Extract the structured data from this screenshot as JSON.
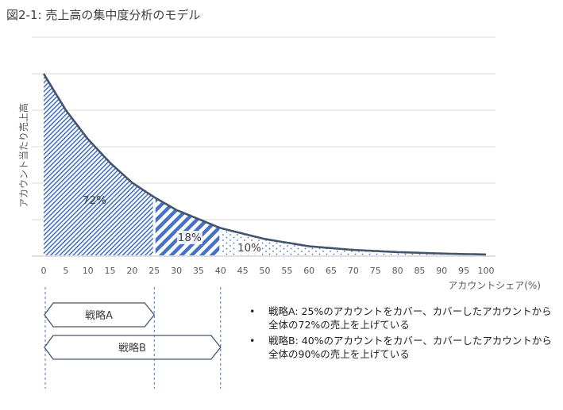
{
  "figure": {
    "title": "図2-1: 売上高の集中度分析のモデル"
  },
  "chart_data": {
    "type": "area",
    "title": "図2-1: 売上高の集中度分析のモデル",
    "xlabel": "アカウントシェア(%)",
    "ylabel": "アカウント当たり売上高",
    "xlim": [
      0,
      100
    ],
    "ylim": [
      0,
      1
    ],
    "grid": true,
    "x_ticks": [
      0,
      5,
      10,
      15,
      20,
      25,
      30,
      35,
      40,
      45,
      50,
      55,
      60,
      65,
      70,
      75,
      80,
      85,
      90,
      95,
      100
    ],
    "series": [
      {
        "x": [
          0,
          5,
          10,
          15,
          20,
          25,
          30,
          35,
          40,
          45,
          50,
          55,
          60,
          65,
          70,
          75,
          80,
          85,
          90,
          95,
          100
        ],
        "y": [
          1.0,
          0.8,
          0.64,
          0.51,
          0.4,
          0.32,
          0.25,
          0.2,
          0.15,
          0.12,
          0.09,
          0.07,
          0.05,
          0.04,
          0.03,
          0.024,
          0.018,
          0.014,
          0.01,
          0.007,
          0.005
        ]
      }
    ],
    "regions": [
      {
        "x_from": 0,
        "x_to": 25,
        "label": "72%",
        "pattern": "thin-diagonal"
      },
      {
        "x_from": 25,
        "x_to": 40,
        "label": "18%",
        "pattern": "thick-diagonal"
      },
      {
        "x_from": 40,
        "x_to": 100,
        "label": "10%",
        "pattern": "dots"
      }
    ],
    "strategies": [
      {
        "label": "戦略A",
        "x_from": 0,
        "x_to": 25
      },
      {
        "label": "戦略B",
        "x_from": 0,
        "x_to": 40
      }
    ],
    "colors": {
      "curve": "#44546a",
      "pattern": "#4472c4",
      "grid": "#d9d9d9"
    }
  },
  "notes": [
    "戦略A: 25%のアカウントをカバー、カバーしたアカウントから全体の72%の売上を上げている",
    "戦略B: 40%のアカウントをカバー、カバーしたアカウントから全体の90%の売上を上げている"
  ],
  "bullet": "•"
}
